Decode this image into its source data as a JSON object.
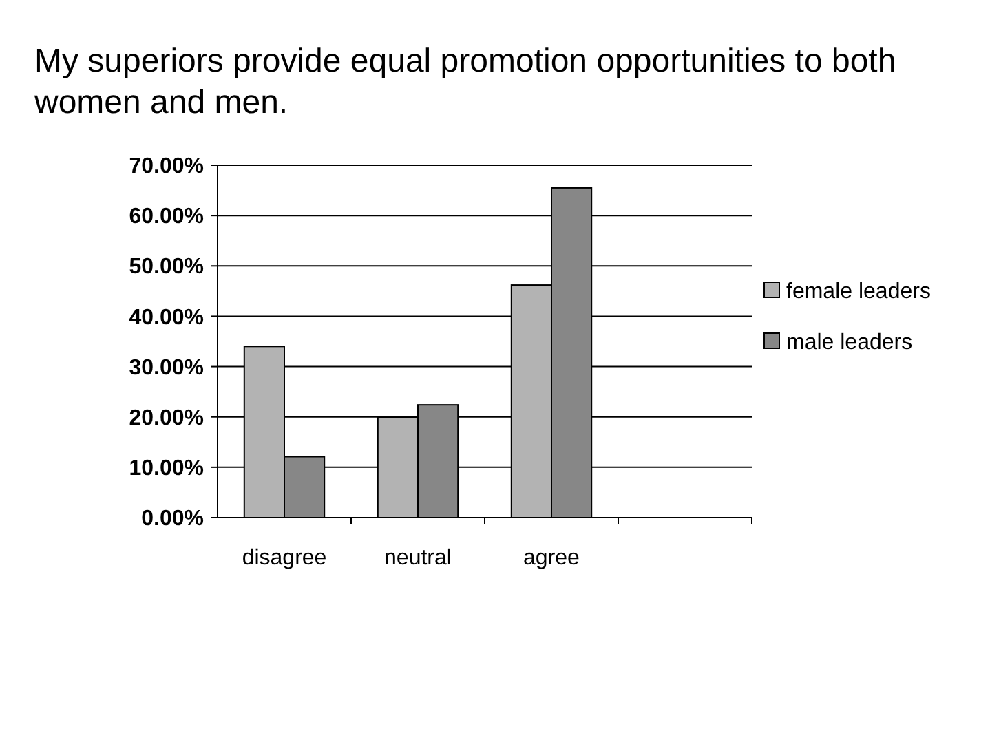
{
  "chart_data": {
    "type": "bar",
    "title": "My superiors provide equal promotion opportunities to both women and men.",
    "categories": [
      "disagree",
      "neutral",
      "agree",
      null
    ],
    "series": [
      {
        "name": "female leaders",
        "color": "#b3b3b3",
        "values": [
          34,
          19.9,
          46.2,
          null
        ]
      },
      {
        "name": "male leaders",
        "color": "#878787",
        "values": [
          12.1,
          22.4,
          65.5,
          null
        ]
      }
    ],
    "ylim": [
      0,
      70
    ],
    "yticks": [
      {
        "value": 0,
        "label": "0.00%"
      },
      {
        "value": 10,
        "label": "10.00%"
      },
      {
        "value": 20,
        "label": "20.00%"
      },
      {
        "value": 30,
        "label": "30.00%"
      },
      {
        "value": 40,
        "label": "40.00%"
      },
      {
        "value": 50,
        "label": "50.00%"
      },
      {
        "value": 60,
        "label": "60.00%"
      },
      {
        "value": 70,
        "label": "70.00%"
      }
    ],
    "grid": "y",
    "legend": "right"
  }
}
